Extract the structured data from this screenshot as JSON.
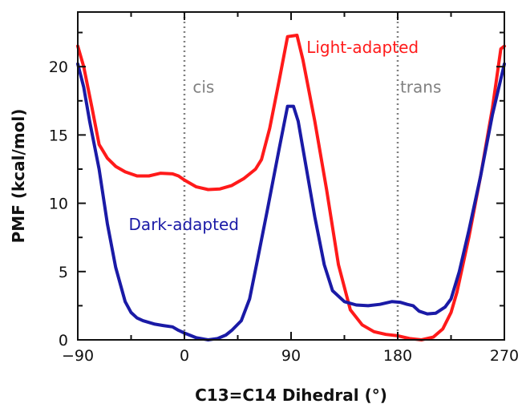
{
  "chart_data": {
    "type": "line",
    "title": "",
    "xlabel": "C13=C14 Dihedral (°)",
    "ylabel": "PMF (kcal/mol)",
    "xlim": [
      -90,
      270
    ],
    "ylim": [
      0,
      24
    ],
    "xticks": [
      -90,
      0,
      90,
      180,
      270
    ],
    "xtick_labels": [
      "−90",
      "0",
      "90",
      "180",
      "270"
    ],
    "yticks": [
      0,
      5,
      10,
      15,
      20
    ],
    "ytick_labels": [
      "0",
      "5",
      "10",
      "15",
      "20"
    ],
    "grid": false,
    "legend": "none",
    "vlines": [
      {
        "x": 0,
        "label": "cis",
        "label_x": 7,
        "label_y": 18.1,
        "color": "#808080"
      },
      {
        "x": 180,
        "label": "trans",
        "label_x": 182,
        "label_y": 18.1,
        "color": "#808080"
      }
    ],
    "series": [
      {
        "name": "Light-adapted",
        "color": "#ff1a1a",
        "label_x": 103,
        "label_y": 21,
        "points": [
          [
            -90,
            21.5
          ],
          [
            -85,
            20.0
          ],
          [
            -78,
            17.0
          ],
          [
            -72,
            14.3
          ],
          [
            -65,
            13.3
          ],
          [
            -58,
            12.7
          ],
          [
            -50,
            12.3
          ],
          [
            -40,
            12.0
          ],
          [
            -30,
            12.0
          ],
          [
            -20,
            12.2
          ],
          [
            -10,
            12.15
          ],
          [
            -5,
            12.0
          ],
          [
            0,
            11.7
          ],
          [
            10,
            11.2
          ],
          [
            20,
            11.0
          ],
          [
            30,
            11.05
          ],
          [
            40,
            11.3
          ],
          [
            50,
            11.8
          ],
          [
            60,
            12.5
          ],
          [
            65,
            13.2
          ],
          [
            72,
            15.5
          ],
          [
            80,
            19.0
          ],
          [
            87,
            22.2
          ],
          [
            95,
            22.3
          ],
          [
            100,
            20.5
          ],
          [
            110,
            16.0
          ],
          [
            120,
            11.0
          ],
          [
            130,
            5.5
          ],
          [
            140,
            2.2
          ],
          [
            150,
            1.1
          ],
          [
            160,
            0.6
          ],
          [
            170,
            0.4
          ],
          [
            180,
            0.3
          ],
          [
            190,
            0.1
          ],
          [
            200,
            0.0
          ],
          [
            210,
            0.2
          ],
          [
            218,
            0.8
          ],
          [
            225,
            2.0
          ],
          [
            230,
            3.5
          ],
          [
            240,
            7.5
          ],
          [
            250,
            12.0
          ],
          [
            260,
            17.0
          ],
          [
            267,
            21.3
          ],
          [
            270,
            21.5
          ]
        ]
      },
      {
        "name": "Dark-adapted",
        "color": "#1a1aa6",
        "label_x": -47,
        "label_y": 8.05,
        "points": [
          [
            -90,
            20.2
          ],
          [
            -85,
            18.5
          ],
          [
            -80,
            16.0
          ],
          [
            -72,
            12.5
          ],
          [
            -65,
            8.5
          ],
          [
            -58,
            5.3
          ],
          [
            -50,
            2.8
          ],
          [
            -45,
            2.0
          ],
          [
            -40,
            1.6
          ],
          [
            -35,
            1.4
          ],
          [
            -25,
            1.15
          ],
          [
            -18,
            1.05
          ],
          [
            -10,
            0.95
          ],
          [
            -5,
            0.7
          ],
          [
            0,
            0.5
          ],
          [
            10,
            0.15
          ],
          [
            20,
            0.0
          ],
          [
            28,
            0.1
          ],
          [
            35,
            0.35
          ],
          [
            40,
            0.7
          ],
          [
            48,
            1.4
          ],
          [
            55,
            3.0
          ],
          [
            62,
            6.0
          ],
          [
            70,
            9.5
          ],
          [
            80,
            14.0
          ],
          [
            87,
            17.1
          ],
          [
            92,
            17.1
          ],
          [
            96,
            16.0
          ],
          [
            100,
            14.0
          ],
          [
            110,
            9.0
          ],
          [
            118,
            5.5
          ],
          [
            125,
            3.6
          ],
          [
            135,
            2.8
          ],
          [
            145,
            2.55
          ],
          [
            155,
            2.5
          ],
          [
            165,
            2.6
          ],
          [
            175,
            2.8
          ],
          [
            182,
            2.75
          ],
          [
            188,
            2.6
          ],
          [
            193,
            2.5
          ],
          [
            198,
            2.1
          ],
          [
            205,
            1.9
          ],
          [
            212,
            1.95
          ],
          [
            220,
            2.4
          ],
          [
            225,
            3.0
          ],
          [
            232,
            5.0
          ],
          [
            240,
            8.0
          ],
          [
            250,
            12.0
          ],
          [
            260,
            16.5
          ],
          [
            270,
            20.2
          ]
        ]
      }
    ]
  }
}
